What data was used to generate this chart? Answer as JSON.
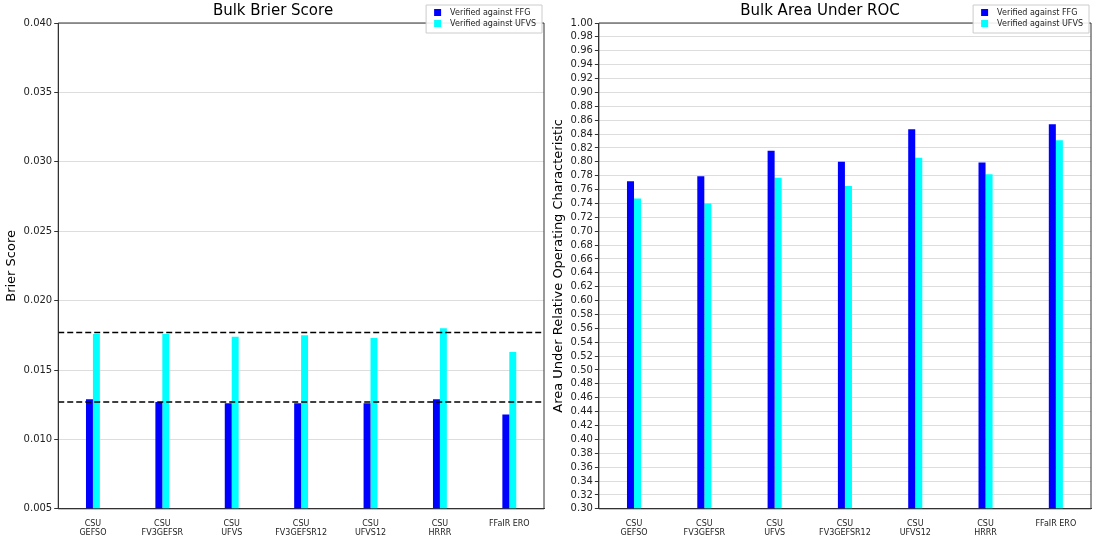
{
  "chart_data": [
    {
      "type": "bar",
      "title": "Bulk Brier Score",
      "ylabel": "Brier Score",
      "categories": [
        "CSU\nGEFSO",
        "CSU\nFV3GEFSR",
        "CSU\nUFVS",
        "CSU\nFV3GEFSR12",
        "CSU\nUFVS12",
        "CSU\nHRRR",
        "FFaIR ERO"
      ],
      "series": [
        {
          "name": "Verified against FFG",
          "color": "#0000ff",
          "values": [
            0.0129,
            0.0127,
            0.0126,
            0.0126,
            0.0126,
            0.0129,
            0.0118
          ]
        },
        {
          "name": "Verified against UFVS",
          "color": "#00ffff",
          "values": [
            0.0176,
            0.0176,
            0.0174,
            0.0175,
            0.0173,
            0.018,
            0.0163
          ]
        }
      ],
      "ylim": [
        0.005,
        0.04
      ],
      "yticks": [
        {
          "value": 0.005,
          "label": "0.005"
        },
        {
          "value": 0.01,
          "label": "0.010"
        },
        {
          "value": 0.015,
          "label": "0.015"
        },
        {
          "value": 0.02,
          "label": "0.020"
        },
        {
          "value": 0.025,
          "label": "0.025"
        },
        {
          "value": 0.03,
          "label": "0.030"
        },
        {
          "value": 0.035,
          "label": "0.035"
        },
        {
          "value": 0.04,
          "label": "0.040"
        }
      ],
      "ref_lines": [
        {
          "axis": "y",
          "value": 0.0177,
          "color": "#000000",
          "line_style": "dashed"
        },
        {
          "axis": "y",
          "value": 0.0127,
          "color": "#000000",
          "line_style": "dashed"
        }
      ],
      "grid": "y",
      "legend": "top right"
    },
    {
      "type": "bar",
      "title": "Bulk Area Under ROC",
      "ylabel": "Area Under Relative Operating Characteristic",
      "categories": [
        "CSU\nGEFSO",
        "CSU\nFV3GEFSR",
        "CSU\nUFVS",
        "CSU\nFV3GEFSR12",
        "CSU\nUFVS12",
        "CSU\nHRRR",
        "FFaIR ERO"
      ],
      "series": [
        {
          "name": "Verified against FFG",
          "color": "#0000ff",
          "values": [
            0.772,
            0.779,
            0.816,
            0.8,
            0.847,
            0.799,
            0.854
          ]
        },
        {
          "name": "Verified against UFVS",
          "color": "#00ffff",
          "values": [
            0.747,
            0.74,
            0.777,
            0.765,
            0.806,
            0.782,
            0.831
          ]
        }
      ],
      "ylim": [
        0.3,
        1.0
      ],
      "yticks": [
        {
          "value": 0.3,
          "label": "0.30"
        },
        {
          "value": 0.32,
          "label": "0.32"
        },
        {
          "value": 0.34,
          "label": "0.34"
        },
        {
          "value": 0.36,
          "label": "0.36"
        },
        {
          "value": 0.38,
          "label": "0.38"
        },
        {
          "value": 0.4,
          "label": "0.40"
        },
        {
          "value": 0.42,
          "label": "0.42"
        },
        {
          "value": 0.44,
          "label": "0.44"
        },
        {
          "value": 0.46,
          "label": "0.46"
        },
        {
          "value": 0.48,
          "label": "0.48"
        },
        {
          "value": 0.5,
          "label": "0.50"
        },
        {
          "value": 0.52,
          "label": "0.52"
        },
        {
          "value": 0.54,
          "label": "0.54"
        },
        {
          "value": 0.56,
          "label": "0.56"
        },
        {
          "value": 0.58,
          "label": "0.58"
        },
        {
          "value": 0.6,
          "label": "0.60"
        },
        {
          "value": 0.62,
          "label": "0.62"
        },
        {
          "value": 0.64,
          "label": "0.64"
        },
        {
          "value": 0.66,
          "label": "0.66"
        },
        {
          "value": 0.68,
          "label": "0.68"
        },
        {
          "value": 0.7,
          "label": "0.70"
        },
        {
          "value": 0.72,
          "label": "0.72"
        },
        {
          "value": 0.74,
          "label": "0.74"
        },
        {
          "value": 0.76,
          "label": "0.76"
        },
        {
          "value": 0.78,
          "label": "0.78"
        },
        {
          "value": 0.8,
          "label": "0.80"
        },
        {
          "value": 0.82,
          "label": "0.82"
        },
        {
          "value": 0.84,
          "label": "0.84"
        },
        {
          "value": 0.86,
          "label": "0.86"
        },
        {
          "value": 0.88,
          "label": "0.88"
        },
        {
          "value": 0.9,
          "label": "0.90"
        },
        {
          "value": 0.92,
          "label": "0.92"
        },
        {
          "value": 0.94,
          "label": "0.94"
        },
        {
          "value": 0.96,
          "label": "0.96"
        },
        {
          "value": 0.98,
          "label": "0.98"
        },
        {
          "value": 1.0,
          "label": "1.00"
        }
      ],
      "grid": "y",
      "legend": "top right"
    }
  ]
}
